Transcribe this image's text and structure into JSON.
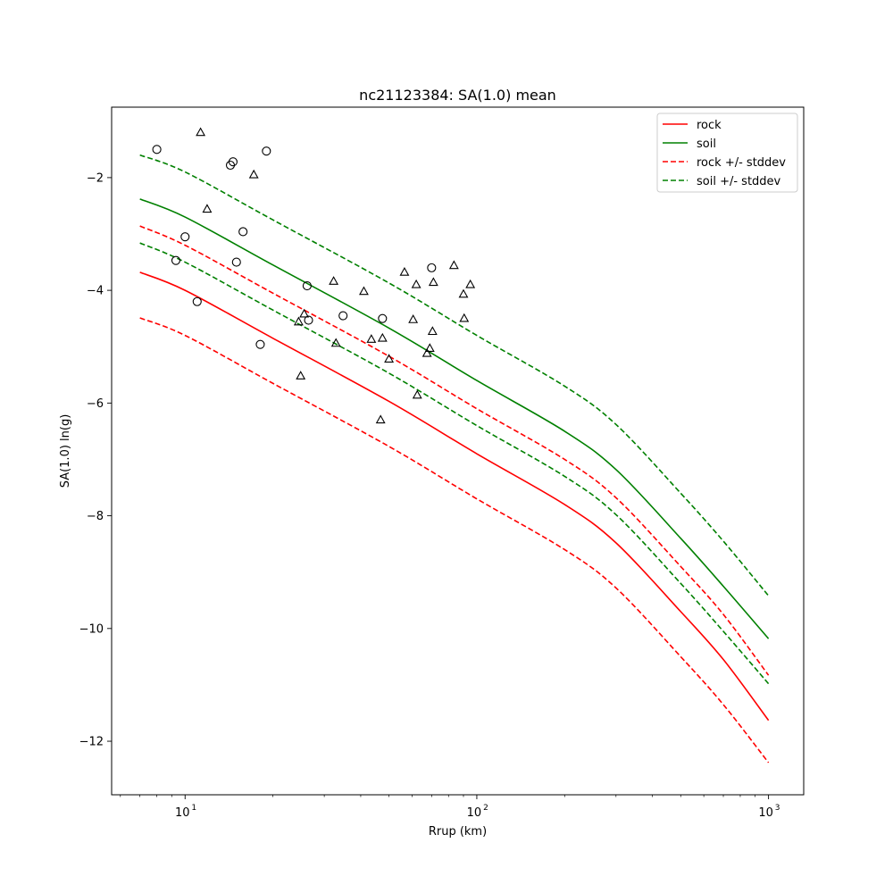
{
  "chart_data": {
    "type": "line",
    "title": "nc21123384: SA(1.0) mean",
    "xlabel": "Rrup (km)",
    "ylabel": "SA(1.0) ln(g)",
    "xscale": "log",
    "xlim": [
      5.6,
      1320
    ],
    "ylim": [
      -12.95,
      -0.75
    ],
    "grid": false,
    "legend_position": "top-right",
    "x_ticks": [
      {
        "value": 10,
        "base": "10",
        "exp": "1"
      },
      {
        "value": 100,
        "base": "10",
        "exp": "2"
      },
      {
        "value": 1000,
        "base": "10",
        "exp": "3"
      }
    ],
    "y_ticks": [
      {
        "value": -2,
        "label": "−2"
      },
      {
        "value": -4,
        "label": "−4"
      },
      {
        "value": -6,
        "label": "−6"
      },
      {
        "value": -8,
        "label": "−8"
      },
      {
        "value": -10,
        "label": "−10"
      },
      {
        "value": -12,
        "label": "−12"
      }
    ],
    "series": [
      {
        "name": "rock",
        "color": "#ff0000",
        "dash": "solid",
        "x": [
          7,
          10,
          20,
          50,
          100,
          200,
          300,
          500,
          700,
          1000
        ],
        "y": [
          -3.68,
          -4.0,
          -4.85,
          -5.97,
          -6.9,
          -7.8,
          -8.48,
          -9.7,
          -10.55,
          -11.63
        ]
      },
      {
        "name": "soil",
        "color": "#008000",
        "dash": "solid",
        "x": [
          7,
          10,
          20,
          50,
          100,
          200,
          300,
          500,
          700,
          1000
        ],
        "y": [
          -2.38,
          -2.7,
          -3.55,
          -4.67,
          -5.6,
          -6.5,
          -7.18,
          -8.4,
          -9.25,
          -10.18
        ]
      },
      {
        "name": "rock +/- stddev",
        "color": "#ff0000",
        "dash": "dashed",
        "x": [
          7,
          10,
          20,
          50,
          100,
          200,
          300,
          500,
          700,
          1000
        ],
        "y": [
          -2.86,
          -3.2,
          -4.05,
          -5.17,
          -6.1,
          -7.0,
          -7.68,
          -8.9,
          -9.75,
          -10.83
        ]
      },
      {
        "name": "",
        "color": "#ff0000",
        "dash": "dashed",
        "x": [
          7,
          10,
          20,
          50,
          100,
          200,
          300,
          500,
          700,
          1000
        ],
        "y": [
          -4.49,
          -4.8,
          -5.65,
          -6.77,
          -7.7,
          -8.6,
          -9.28,
          -10.5,
          -11.35,
          -12.38
        ]
      },
      {
        "name": "soil +/- stddev",
        "color": "#008000",
        "dash": "dashed",
        "x": [
          7,
          10,
          20,
          50,
          100,
          200,
          300,
          500,
          700,
          1000
        ],
        "y": [
          -1.6,
          -1.9,
          -2.75,
          -3.87,
          -4.8,
          -5.7,
          -6.38,
          -7.6,
          -8.45,
          -9.42
        ]
      },
      {
        "name": "",
        "color": "#008000",
        "dash": "dashed",
        "x": [
          7,
          10,
          20,
          50,
          100,
          200,
          300,
          500,
          700,
          1000
        ],
        "y": [
          -3.16,
          -3.5,
          -4.35,
          -5.47,
          -6.4,
          -7.3,
          -7.98,
          -9.2,
          -10.05,
          -10.98
        ]
      }
    ],
    "points": [
      {
        "marker": "circle",
        "x": 8.0,
        "y": -1.5
      },
      {
        "marker": "circle",
        "x": 9.3,
        "y": -3.47
      },
      {
        "marker": "circle",
        "x": 10.0,
        "y": -3.05
      },
      {
        "marker": "circle",
        "x": 11.0,
        "y": -4.2
      },
      {
        "marker": "circle",
        "x": 14.3,
        "y": -1.78
      },
      {
        "marker": "circle",
        "x": 14.6,
        "y": -1.72
      },
      {
        "marker": "circle",
        "x": 15.0,
        "y": -3.5
      },
      {
        "marker": "circle",
        "x": 15.8,
        "y": -2.96
      },
      {
        "marker": "circle",
        "x": 18.1,
        "y": -4.96
      },
      {
        "marker": "circle",
        "x": 19.0,
        "y": -1.53
      },
      {
        "marker": "circle",
        "x": 26.2,
        "y": -3.92
      },
      {
        "marker": "circle",
        "x": 26.5,
        "y": -4.53
      },
      {
        "marker": "circle",
        "x": 34.8,
        "y": -4.45
      },
      {
        "marker": "circle",
        "x": 47.5,
        "y": -4.5
      },
      {
        "marker": "circle",
        "x": 70.0,
        "y": -3.6
      },
      {
        "marker": "triangle",
        "x": 11.3,
        "y": -1.2
      },
      {
        "marker": "triangle",
        "x": 11.9,
        "y": -2.56
      },
      {
        "marker": "triangle",
        "x": 17.2,
        "y": -1.95
      },
      {
        "marker": "triangle",
        "x": 24.5,
        "y": -4.56
      },
      {
        "marker": "triangle",
        "x": 24.9,
        "y": -5.52
      },
      {
        "marker": "triangle",
        "x": 25.6,
        "y": -4.42
      },
      {
        "marker": "triangle",
        "x": 32.3,
        "y": -3.84
      },
      {
        "marker": "triangle",
        "x": 32.9,
        "y": -4.94
      },
      {
        "marker": "triangle",
        "x": 41.0,
        "y": -4.02
      },
      {
        "marker": "triangle",
        "x": 43.5,
        "y": -4.87
      },
      {
        "marker": "triangle",
        "x": 46.8,
        "y": -6.3
      },
      {
        "marker": "triangle",
        "x": 47.5,
        "y": -4.85
      },
      {
        "marker": "triangle",
        "x": 50.0,
        "y": -5.22
      },
      {
        "marker": "triangle",
        "x": 56.5,
        "y": -3.68
      },
      {
        "marker": "triangle",
        "x": 60.5,
        "y": -4.52
      },
      {
        "marker": "triangle",
        "x": 62.0,
        "y": -3.9
      },
      {
        "marker": "triangle",
        "x": 62.5,
        "y": -5.86
      },
      {
        "marker": "triangle",
        "x": 67.5,
        "y": -5.12
      },
      {
        "marker": "triangle",
        "x": 69.0,
        "y": -5.03
      },
      {
        "marker": "triangle",
        "x": 70.5,
        "y": -4.73
      },
      {
        "marker": "triangle",
        "x": 71.0,
        "y": -3.86
      },
      {
        "marker": "triangle",
        "x": 83.5,
        "y": -3.56
      },
      {
        "marker": "triangle",
        "x": 90.0,
        "y": -4.07
      },
      {
        "marker": "triangle",
        "x": 90.5,
        "y": -4.5
      },
      {
        "marker": "triangle",
        "x": 95.0,
        "y": -3.9
      }
    ]
  }
}
